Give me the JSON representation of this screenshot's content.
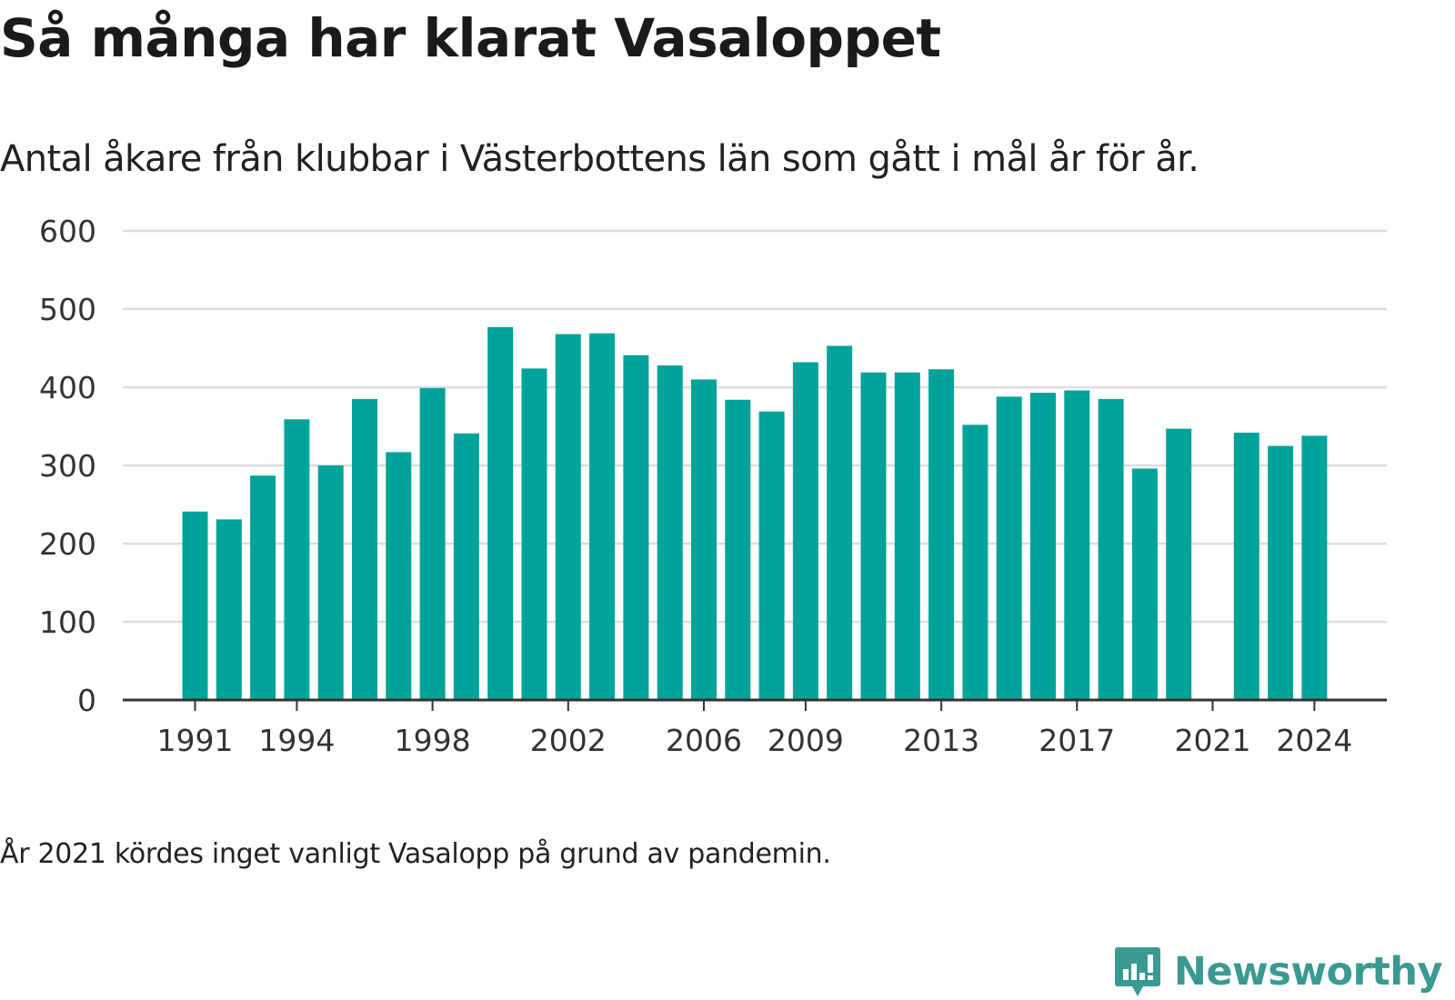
{
  "header": {
    "title": "Så många har klarat Vasaloppet",
    "subtitle": "Antal åkare från klubbar i Västerbottens län som gått i mål år för år."
  },
  "footer": {
    "note": "År 2021 kördes inget vanligt Vasalopp på grund av pandemin.",
    "logo_text": "Newsworthy"
  },
  "colors": {
    "bar": "#00a39a",
    "grid": "#dddddd",
    "axis": "#333333",
    "logo": "#3a9a92"
  },
  "chart_data": {
    "type": "bar",
    "categories": [
      1991,
      1992,
      1993,
      1994,
      1995,
      1996,
      1997,
      1998,
      1999,
      2000,
      2001,
      2002,
      2003,
      2004,
      2005,
      2006,
      2007,
      2008,
      2009,
      2010,
      2011,
      2012,
      2013,
      2014,
      2015,
      2016,
      2017,
      2018,
      2019,
      2020,
      2021,
      2022,
      2023,
      2024
    ],
    "values": [
      241,
      231,
      287,
      359,
      300,
      385,
      317,
      399,
      341,
      477,
      424,
      468,
      469,
      441,
      428,
      410,
      384,
      369,
      432,
      453,
      419,
      419,
      423,
      352,
      388,
      393,
      396,
      385,
      296,
      347,
      null,
      342,
      325,
      338
    ],
    "x_tick_labels": [
      "1991",
      "1994",
      "1998",
      "2002",
      "2006",
      "2009",
      "2013",
      "2017",
      "2021",
      "2024"
    ],
    "y_ticks": [
      0,
      100,
      200,
      300,
      400,
      500,
      600
    ],
    "ylim": [
      0,
      600
    ],
    "grid": true,
    "legend": "none"
  }
}
